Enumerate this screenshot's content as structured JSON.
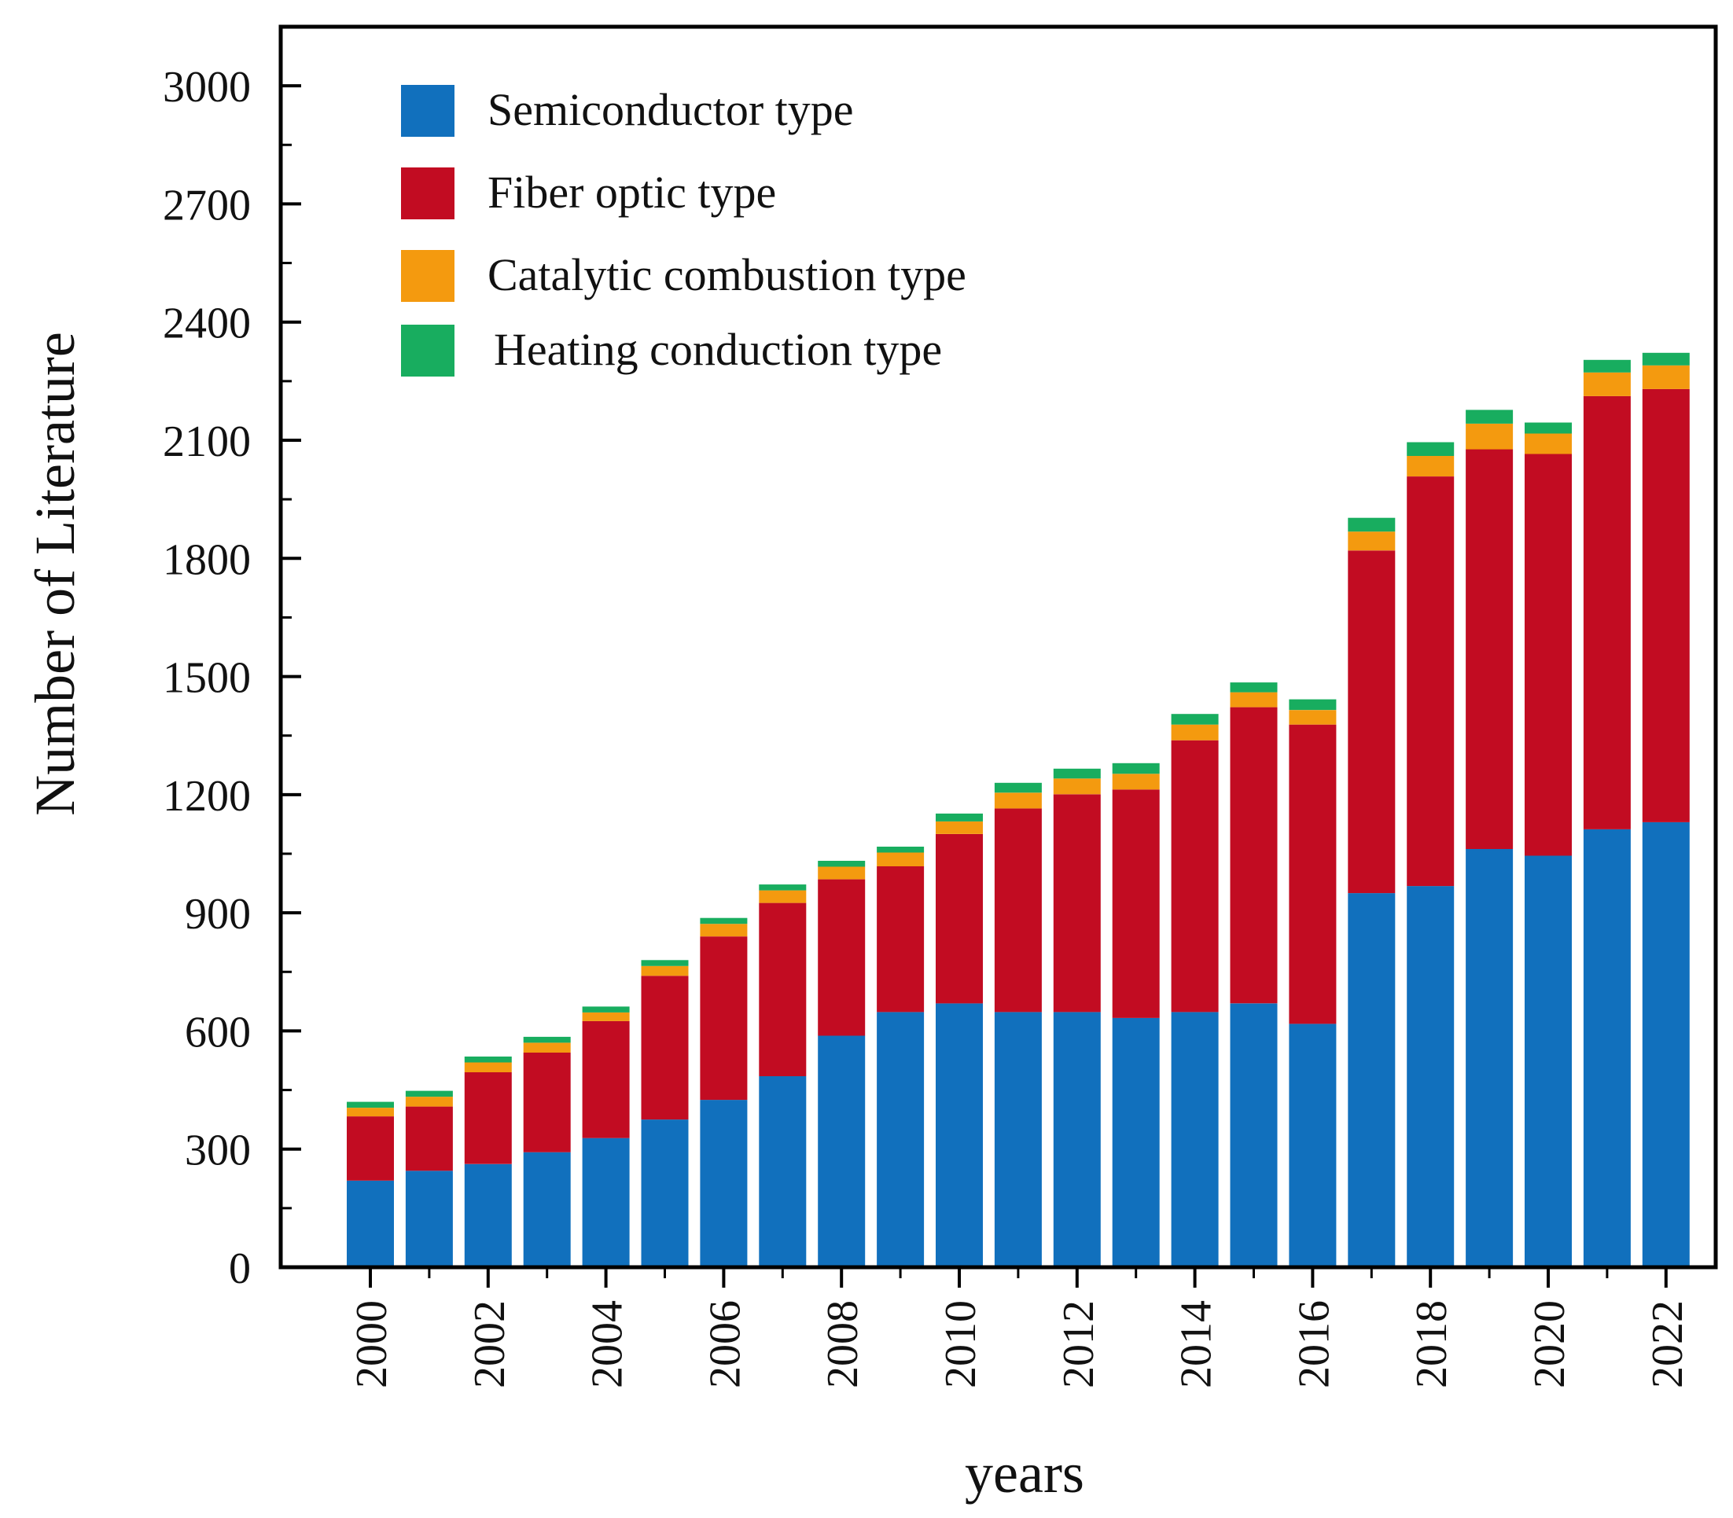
{
  "chart_data": {
    "type": "bar",
    "stacked": true,
    "title": "",
    "xlabel": "years",
    "ylabel": "Number of Literature",
    "ylim": [
      0,
      3150
    ],
    "yticks": [
      0,
      300,
      600,
      900,
      1200,
      1500,
      1800,
      2100,
      2400,
      2700,
      3000
    ],
    "ytick_labels": [
      "0",
      "300",
      "600",
      "900",
      "1200",
      "1500",
      "1800",
      "2100",
      "2400",
      "2700",
      "3000"
    ],
    "categories": [
      "2000",
      "2001",
      "2002",
      "2003",
      "2004",
      "2005",
      "2006",
      "2007",
      "2008",
      "2009",
      "2010",
      "2011",
      "2012",
      "2013",
      "2014",
      "2015",
      "2016",
      "2017",
      "2018",
      "2019",
      "2020",
      "2021",
      "2022"
    ],
    "xtick_labels": [
      "2000",
      "2002",
      "2004",
      "2006",
      "2008",
      "2010",
      "2012",
      "2014",
      "2016",
      "2018",
      "2020",
      "2022"
    ],
    "legend_position": "top-left",
    "grid": false,
    "series": [
      {
        "name": "Semiconductor type",
        "color": "#1170bd",
        "values": [
          220,
          245,
          262,
          292,
          328,
          375,
          425,
          485,
          588,
          648,
          670,
          648,
          648,
          633,
          648,
          670,
          618,
          950,
          968,
          1062,
          1045,
          1112,
          1130
        ]
      },
      {
        "name": "Fiber optic type",
        "color": "#c20c22",
        "values": [
          163,
          163,
          233,
          253,
          297,
          365,
          415,
          440,
          397,
          370,
          430,
          517,
          553,
          580,
          690,
          752,
          760,
          870,
          1040,
          1015,
          1020,
          1100,
          1100
        ]
      },
      {
        "name": "Catalytic combustion type",
        "color": "#f49a0f",
        "values": [
          22,
          25,
          25,
          25,
          22,
          25,
          32,
          32,
          32,
          35,
          32,
          40,
          40,
          40,
          40,
          38,
          37,
          48,
          52,
          65,
          52,
          60,
          60
        ]
      },
      {
        "name": "Heating conduction type",
        "color": "#18ad5f",
        "values": [
          15,
          15,
          15,
          15,
          15,
          15,
          15,
          15,
          15,
          15,
          20,
          25,
          25,
          27,
          27,
          25,
          27,
          35,
          35,
          35,
          28,
          32,
          32
        ]
      }
    ]
  }
}
